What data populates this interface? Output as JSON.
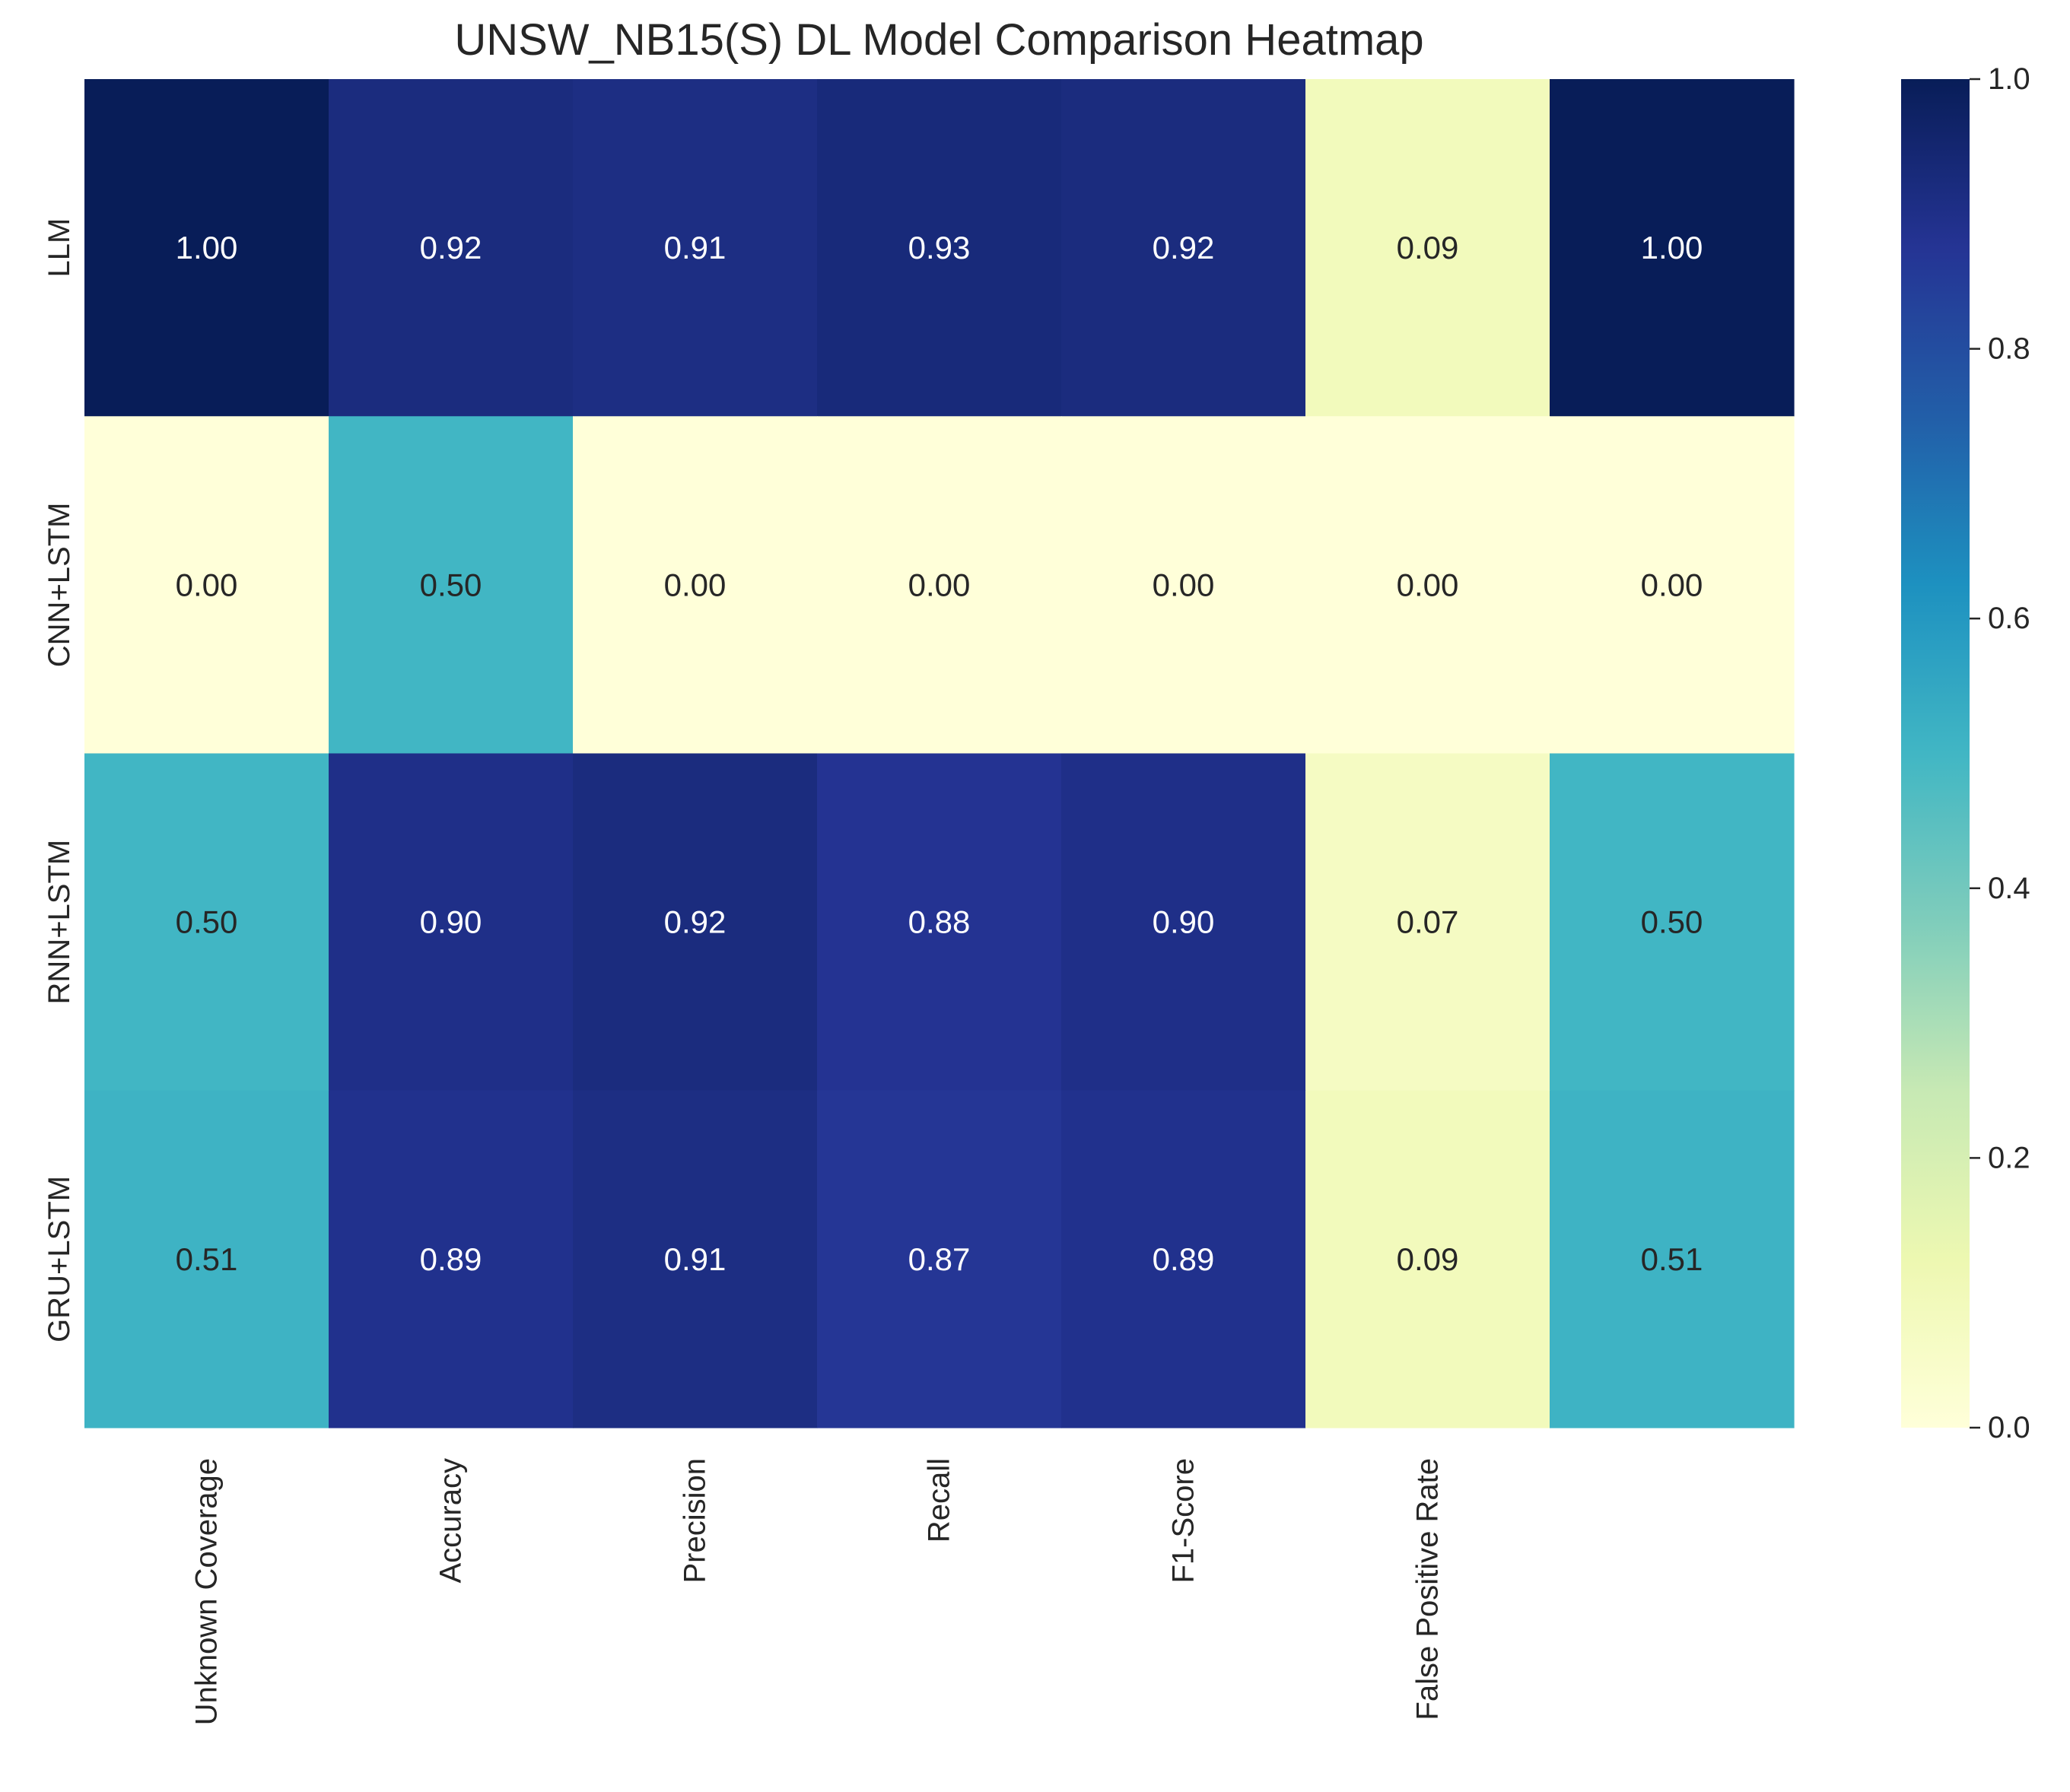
{
  "chart_data": {
    "type": "heatmap",
    "title": "UNSW_NB15(S) DL Model Comparison Heatmap",
    "xlabel": "",
    "ylabel": "",
    "columns": [
      "Unknown Coverage",
      "Accuracy",
      "Precision",
      "Recall",
      "F1-Score",
      "False Positive Rate",
      ""
    ],
    "rows": [
      "LLM",
      "CNN+LSTM",
      "RNN+LSTM",
      "GRU+LSTM"
    ],
    "values": [
      [
        1.0,
        0.92,
        0.91,
        0.93,
        0.92,
        0.09,
        1.0
      ],
      [
        0.0,
        0.5,
        0.0,
        0.0,
        0.0,
        0.0,
        0.0
      ],
      [
        0.5,
        0.9,
        0.92,
        0.88,
        0.9,
        0.07,
        0.5
      ],
      [
        0.51,
        0.89,
        0.91,
        0.87,
        0.89,
        0.09,
        0.51
      ]
    ],
    "value_format": "0.00",
    "colormap": "YlGnBu",
    "vmin": 0.0,
    "vmax": 1.0,
    "colorbar": {
      "ticks": [
        0.0,
        0.2,
        0.4,
        0.6,
        0.8,
        1.0
      ],
      "tick_labels": [
        "0.0",
        "0.2",
        "0.4",
        "0.6",
        "0.8",
        "1.0"
      ],
      "placement": "right"
    },
    "grid": false
  }
}
